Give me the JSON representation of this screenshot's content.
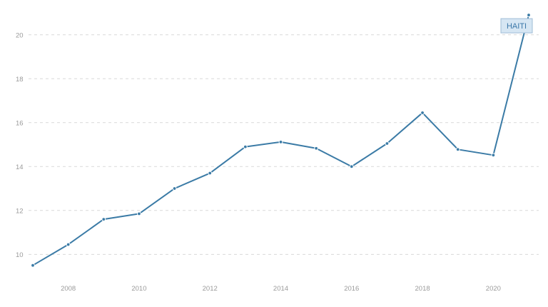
{
  "chart_data": {
    "type": "line",
    "x": [
      2007,
      2008,
      2009,
      2010,
      2011,
      2012,
      2013,
      2014,
      2015,
      2016,
      2017,
      2018,
      2019,
      2020,
      2021
    ],
    "series": [
      {
        "name": "HAITI",
        "values": [
          9.5,
          10.45,
          11.6,
          11.85,
          13.0,
          13.7,
          14.9,
          15.12,
          14.83,
          14.0,
          15.05,
          16.45,
          14.78,
          14.52,
          20.9
        ],
        "color": "#3b7ba6"
      }
    ],
    "x_ticks": [
      2008,
      2010,
      2012,
      2014,
      2016,
      2018,
      2020
    ],
    "y_ticks": [
      10,
      12,
      14,
      16,
      18,
      20
    ],
    "xlim": [
      2007,
      2021
    ],
    "ylim": [
      9.1,
      21
    ],
    "grid": "horizontal dashed",
    "end_label": "HAITI"
  }
}
